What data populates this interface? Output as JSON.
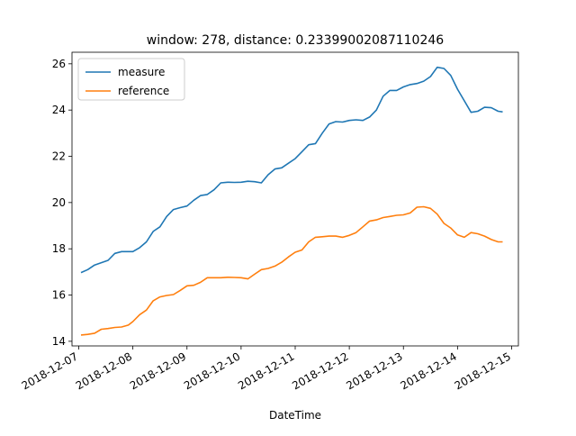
{
  "chart_data": {
    "type": "line",
    "title": "window: 278, distance: 0.23399002087110246",
    "xlabel": "DateTime",
    "ylabel": "",
    "xlim": [
      "2018-12-06T21:00:00",
      "2018-12-15T03:00:00"
    ],
    "ylim": [
      13.8,
      26.5
    ],
    "x_ticks": [
      "2018-12-07",
      "2018-12-08",
      "2018-12-09",
      "2018-12-10",
      "2018-12-11",
      "2018-12-12",
      "2018-12-13",
      "2018-12-14",
      "2018-12-15"
    ],
    "y_ticks": [
      14,
      16,
      18,
      20,
      22,
      24,
      26
    ],
    "grid": false,
    "legend": {
      "placement": "top-left"
    },
    "series": [
      {
        "name": "measure",
        "color": "#1f77b4",
        "points": [
          [
            "2018-12-07T01:00",
            16.97
          ],
          [
            "2018-12-07T04:00",
            17.1
          ],
          [
            "2018-12-07T07:00",
            17.3
          ],
          [
            "2018-12-07T10:00",
            17.4
          ],
          [
            "2018-12-07T13:00",
            17.5
          ],
          [
            "2018-12-07T16:00",
            17.8
          ],
          [
            "2018-12-07T19:00",
            17.88
          ],
          [
            "2018-12-08T00:00",
            17.88
          ],
          [
            "2018-12-08T03:00",
            18.05
          ],
          [
            "2018-12-08T06:00",
            18.3
          ],
          [
            "2018-12-08T09:00",
            18.75
          ],
          [
            "2018-12-08T12:00",
            18.95
          ],
          [
            "2018-12-08T15:00",
            19.4
          ],
          [
            "2018-12-08T18:00",
            19.7
          ],
          [
            "2018-12-08T21:00",
            19.78
          ],
          [
            "2018-12-09T00:00",
            19.85
          ],
          [
            "2018-12-09T03:00",
            20.1
          ],
          [
            "2018-12-09T06:00",
            20.3
          ],
          [
            "2018-12-09T09:00",
            20.35
          ],
          [
            "2018-12-09T12:00",
            20.55
          ],
          [
            "2018-12-09T15:00",
            20.85
          ],
          [
            "2018-12-09T18:00",
            20.88
          ],
          [
            "2018-12-09T21:00",
            20.87
          ],
          [
            "2018-12-10T00:00",
            20.88
          ],
          [
            "2018-12-10T03:00",
            20.92
          ],
          [
            "2018-12-10T06:00",
            20.9
          ],
          [
            "2018-12-10T09:00",
            20.85
          ],
          [
            "2018-12-10T12:00",
            21.2
          ],
          [
            "2018-12-10T15:00",
            21.45
          ],
          [
            "2018-12-10T18:00",
            21.5
          ],
          [
            "2018-12-10T21:00",
            21.7
          ],
          [
            "2018-12-11T00:00",
            21.9
          ],
          [
            "2018-12-11T03:00",
            22.2
          ],
          [
            "2018-12-11T06:00",
            22.5
          ],
          [
            "2018-12-11T09:00",
            22.55
          ],
          [
            "2018-12-11T12:00",
            23.0
          ],
          [
            "2018-12-11T15:00",
            23.4
          ],
          [
            "2018-12-11T18:00",
            23.5
          ],
          [
            "2018-12-11T21:00",
            23.48
          ],
          [
            "2018-12-12T00:00",
            23.55
          ],
          [
            "2018-12-12T03:00",
            23.58
          ],
          [
            "2018-12-12T06:00",
            23.55
          ],
          [
            "2018-12-12T09:00",
            23.7
          ],
          [
            "2018-12-12T12:00",
            24.0
          ],
          [
            "2018-12-12T15:00",
            24.6
          ],
          [
            "2018-12-12T18:00",
            24.85
          ],
          [
            "2018-12-12T21:00",
            24.85
          ],
          [
            "2018-12-13T00:00",
            25.0
          ],
          [
            "2018-12-13T03:00",
            25.1
          ],
          [
            "2018-12-13T06:00",
            25.15
          ],
          [
            "2018-12-13T09:00",
            25.25
          ],
          [
            "2018-12-13T12:00",
            25.45
          ],
          [
            "2018-12-13T15:00",
            25.85
          ],
          [
            "2018-12-13T18:00",
            25.8
          ],
          [
            "2018-12-13T21:00",
            25.5
          ],
          [
            "2018-12-14T00:00",
            24.9
          ],
          [
            "2018-12-14T03:00",
            24.4
          ],
          [
            "2018-12-14T06:00",
            23.9
          ],
          [
            "2018-12-14T09:00",
            23.95
          ],
          [
            "2018-12-14T12:00",
            24.12
          ],
          [
            "2018-12-14T15:00",
            24.1
          ],
          [
            "2018-12-14T18:00",
            23.95
          ],
          [
            "2018-12-14T20:00",
            23.92
          ]
        ]
      },
      {
        "name": "reference",
        "color": "#ff7f0e",
        "points": [
          [
            "2018-12-07T01:00",
            14.27
          ],
          [
            "2018-12-07T04:00",
            14.3
          ],
          [
            "2018-12-07T07:00",
            14.35
          ],
          [
            "2018-12-07T10:00",
            14.52
          ],
          [
            "2018-12-07T13:00",
            14.55
          ],
          [
            "2018-12-07T16:00",
            14.6
          ],
          [
            "2018-12-07T19:00",
            14.62
          ],
          [
            "2018-12-07T22:00",
            14.7
          ],
          [
            "2018-12-08T00:00",
            14.85
          ],
          [
            "2018-12-08T03:00",
            15.15
          ],
          [
            "2018-12-08T06:00",
            15.35
          ],
          [
            "2018-12-08T09:00",
            15.75
          ],
          [
            "2018-12-08T12:00",
            15.92
          ],
          [
            "2018-12-08T15:00",
            15.98
          ],
          [
            "2018-12-08T18:00",
            16.02
          ],
          [
            "2018-12-08T21:00",
            16.2
          ],
          [
            "2018-12-09T00:00",
            16.4
          ],
          [
            "2018-12-09T03:00",
            16.42
          ],
          [
            "2018-12-09T06:00",
            16.55
          ],
          [
            "2018-12-09T09:00",
            16.75
          ],
          [
            "2018-12-09T12:00",
            16.75
          ],
          [
            "2018-12-09T15:00",
            16.75
          ],
          [
            "2018-12-09T18:00",
            16.77
          ],
          [
            "2018-12-09T21:00",
            16.76
          ],
          [
            "2018-12-10T00:00",
            16.75
          ],
          [
            "2018-12-10T03:00",
            16.7
          ],
          [
            "2018-12-10T06:00",
            16.9
          ],
          [
            "2018-12-10T09:00",
            17.1
          ],
          [
            "2018-12-10T12:00",
            17.15
          ],
          [
            "2018-12-10T15:00",
            17.25
          ],
          [
            "2018-12-10T18:00",
            17.42
          ],
          [
            "2018-12-10T21:00",
            17.65
          ],
          [
            "2018-12-11T00:00",
            17.85
          ],
          [
            "2018-12-11T03:00",
            17.95
          ],
          [
            "2018-12-11T06:00",
            18.3
          ],
          [
            "2018-12-11T09:00",
            18.5
          ],
          [
            "2018-12-11T12:00",
            18.52
          ],
          [
            "2018-12-11T15:00",
            18.55
          ],
          [
            "2018-12-11T18:00",
            18.55
          ],
          [
            "2018-12-11T21:00",
            18.5
          ],
          [
            "2018-12-12T00:00",
            18.58
          ],
          [
            "2018-12-12T03:00",
            18.7
          ],
          [
            "2018-12-12T06:00",
            18.95
          ],
          [
            "2018-12-12T09:00",
            19.2
          ],
          [
            "2018-12-12T12:00",
            19.25
          ],
          [
            "2018-12-12T15:00",
            19.35
          ],
          [
            "2018-12-12T18:00",
            19.4
          ],
          [
            "2018-12-12T21:00",
            19.45
          ],
          [
            "2018-12-13T00:00",
            19.47
          ],
          [
            "2018-12-13T03:00",
            19.55
          ],
          [
            "2018-12-13T06:00",
            19.8
          ],
          [
            "2018-12-13T09:00",
            19.82
          ],
          [
            "2018-12-13T12:00",
            19.75
          ],
          [
            "2018-12-13T15:00",
            19.5
          ],
          [
            "2018-12-13T18:00",
            19.1
          ],
          [
            "2018-12-13T21:00",
            18.9
          ],
          [
            "2018-12-14T00:00",
            18.6
          ],
          [
            "2018-12-14T03:00",
            18.5
          ],
          [
            "2018-12-14T06:00",
            18.7
          ],
          [
            "2018-12-14T09:00",
            18.65
          ],
          [
            "2018-12-14T12:00",
            18.55
          ],
          [
            "2018-12-14T15:00",
            18.4
          ],
          [
            "2018-12-14T18:00",
            18.3
          ],
          [
            "2018-12-14T20:00",
            18.3
          ]
        ]
      }
    ]
  }
}
